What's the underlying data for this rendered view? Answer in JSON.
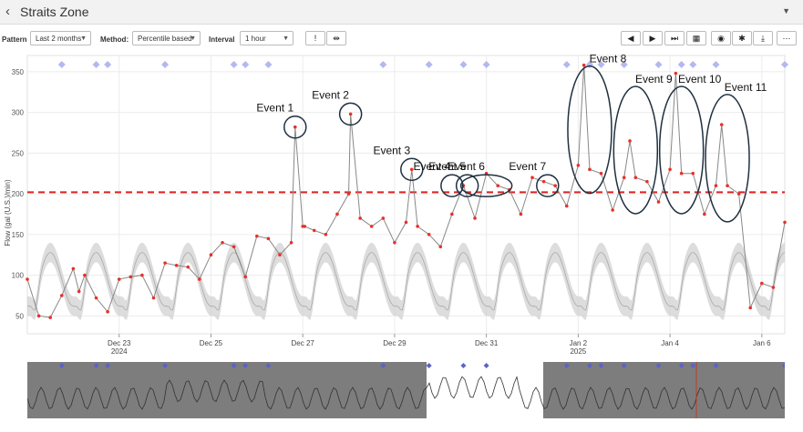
{
  "app": {
    "title": "Straits Zone"
  },
  "controls": {
    "pattern_label": "Pattern",
    "pattern_value": "Last 2 months",
    "method_label": "Method:",
    "method_value": "Percentile based",
    "interval_label": "Interval",
    "interval_value": "1 hour"
  },
  "toolbar_icons": [
    "alert-icon",
    "compare-icon",
    "prev-icon",
    "play-icon",
    "next-icon",
    "calendar-icon",
    "eye-icon",
    "gear-icon",
    "download-icon",
    "more-icon"
  ],
  "chart_data": {
    "type": "line",
    "ylabel": "Flow (gal (U.S.)/min)",
    "ylim": [
      28,
      370
    ],
    "yticks": [
      50,
      100,
      150,
      200,
      250,
      300,
      350
    ],
    "x_range_days": [
      "2024-12-21T00:00",
      "2025-01-06T12:00"
    ],
    "xticks": [
      {
        "date": "2024-12-23",
        "label": "Dec 23",
        "sublabel": "2024"
      },
      {
        "date": "2024-12-25",
        "label": "Dec 25",
        "sublabel": ""
      },
      {
        "date": "2024-12-27",
        "label": "Dec 27",
        "sublabel": ""
      },
      {
        "date": "2024-12-29",
        "label": "Dec 29",
        "sublabel": ""
      },
      {
        "date": "2024-12-31",
        "label": "Dec 31",
        "sublabel": ""
      },
      {
        "date": "2025-01-02",
        "label": "Jan 2",
        "sublabel": "2025"
      },
      {
        "date": "2025-01-04",
        "label": "Jan 4",
        "sublabel": ""
      },
      {
        "date": "2025-01-06",
        "label": "Jan 6",
        "sublabel": ""
      }
    ],
    "threshold": {
      "value": 202,
      "color": "#e02020",
      "style": "dashed"
    },
    "series": [
      {
        "kind": "observed",
        "color": "#888888",
        "marker_color": "#e8302a",
        "points": [
          [
            "2024-12-21T00:00",
            95
          ],
          [
            "2024-12-21T06:00",
            50
          ],
          [
            "2024-12-21T12:00",
            48
          ],
          [
            "2024-12-21T18:00",
            75
          ],
          [
            "2024-12-22T00:00",
            108
          ],
          [
            "2024-12-22T03:00",
            80
          ],
          [
            "2024-12-22T06:00",
            100
          ],
          [
            "2024-12-22T12:00",
            72
          ],
          [
            "2024-12-22T18:00",
            55
          ],
          [
            "2024-12-23T00:00",
            95
          ],
          [
            "2024-12-23T06:00",
            98
          ],
          [
            "2024-12-23T12:00",
            100
          ],
          [
            "2024-12-23T18:00",
            72
          ],
          [
            "2024-12-24T00:00",
            115
          ],
          [
            "2024-12-24T06:00",
            112
          ],
          [
            "2024-12-24T12:00",
            110
          ],
          [
            "2024-12-24T18:00",
            95
          ],
          [
            "2024-12-25T00:00",
            125
          ],
          [
            "2024-12-25T06:00",
            140
          ],
          [
            "2024-12-25T12:00",
            135
          ],
          [
            "2024-12-25T18:00",
            98
          ],
          [
            "2024-12-26T00:00",
            148
          ],
          [
            "2024-12-26T06:00",
            145
          ],
          [
            "2024-12-26T12:00",
            125
          ],
          [
            "2024-12-26T18:00",
            140
          ],
          [
            "2024-12-27T00:00",
            160
          ],
          [
            "2024-12-27T01:00",
            160
          ],
          [
            "2024-12-26T20:00",
            282
          ],
          [
            "2024-12-27T06:00",
            155
          ],
          [
            "2024-12-27T12:00",
            150
          ],
          [
            "2024-12-27T18:00",
            175
          ],
          [
            "2024-12-28T00:00",
            200
          ],
          [
            "2024-12-28T01:00",
            298
          ],
          [
            "2024-12-28T06:00",
            170
          ],
          [
            "2024-12-28T12:00",
            160
          ],
          [
            "2024-12-28T18:00",
            170
          ],
          [
            "2024-12-29T00:00",
            140
          ],
          [
            "2024-12-29T06:00",
            165
          ],
          [
            "2024-12-29T09:00",
            230
          ],
          [
            "2024-12-29T12:00",
            160
          ],
          [
            "2024-12-29T18:00",
            150
          ],
          [
            "2024-12-30T00:00",
            135
          ],
          [
            "2024-12-30T06:00",
            175
          ],
          [
            "2024-12-30T12:00",
            210
          ],
          [
            "2024-12-30T18:00",
            170
          ],
          [
            "2024-12-31T00:00",
            225
          ],
          [
            "2024-12-31T06:00",
            210
          ],
          [
            "2024-12-31T12:00",
            205
          ],
          [
            "2024-12-31T18:00",
            175
          ],
          [
            "2025-01-01T00:00",
            220
          ],
          [
            "2025-01-01T06:00",
            215
          ],
          [
            "2025-01-01T12:00",
            210
          ],
          [
            "2025-01-01T18:00",
            185
          ],
          [
            "2025-01-02T00:00",
            235
          ],
          [
            "2025-01-02T03:00",
            358
          ],
          [
            "2025-01-02T06:00",
            230
          ],
          [
            "2025-01-02T12:00",
            225
          ],
          [
            "2025-01-02T18:00",
            180
          ],
          [
            "2025-01-03T00:00",
            220
          ],
          [
            "2025-01-03T03:00",
            265
          ],
          [
            "2025-01-03T06:00",
            220
          ],
          [
            "2025-01-03T12:00",
            215
          ],
          [
            "2025-01-03T18:00",
            190
          ],
          [
            "2025-01-04T00:00",
            230
          ],
          [
            "2025-01-04T03:00",
            348
          ],
          [
            "2025-01-04T06:00",
            225
          ],
          [
            "2025-01-04T12:00",
            225
          ],
          [
            "2025-01-04T18:00",
            175
          ],
          [
            "2025-01-05T00:00",
            210
          ],
          [
            "2025-01-05T03:00",
            285
          ],
          [
            "2025-01-05T06:00",
            210
          ],
          [
            "2025-01-05T12:00",
            200
          ],
          [
            "2025-01-05T18:00",
            60
          ],
          [
            "2025-01-06T00:00",
            90
          ],
          [
            "2025-01-06T06:00",
            85
          ],
          [
            "2025-01-06T12:00",
            165
          ]
        ]
      }
    ],
    "pattern_band": {
      "color": "#cfcfcf",
      "base_weekday": 95,
      "amplitude": 55
    },
    "event_markers": [
      "2024-12-21T18:00",
      "2024-12-22T12:00",
      "2024-12-22T18:00",
      "2024-12-24T00:00",
      "2024-12-25T12:00",
      "2024-12-25T18:00",
      "2024-12-26T06:00",
      "2024-12-28T18:00",
      "2024-12-29T18:00",
      "2024-12-30T12:00",
      "2024-12-31T00:00",
      "2025-01-01T18:00",
      "2025-01-02T06:00",
      "2025-01-02T12:00",
      "2025-01-03T00:00",
      "2025-01-03T18:00",
      "2025-01-04T06:00",
      "2025-01-04T12:00",
      "2025-01-05T00:00",
      "2025-01-06T12:00"
    ],
    "annotations": [
      {
        "label": "Event 1",
        "x": "2024-12-26T20:00",
        "y": 282
      },
      {
        "label": "Event 2",
        "x": "2024-12-28T01:00",
        "y": 298
      },
      {
        "label": "Event 3",
        "x": "2024-12-29T09:00",
        "y": 230
      },
      {
        "label": "Event 4",
        "x": "2024-12-30T06:00",
        "y": 210
      },
      {
        "label": "Event 5",
        "x": "2024-12-30T14:00",
        "y": 210
      },
      {
        "label": "Event 6",
        "x": "2024-12-31T00:00",
        "y": 210
      },
      {
        "label": "Event 7",
        "x": "2025-01-01T08:00",
        "y": 210
      },
      {
        "label": "Event 8",
        "x": "2025-01-02T06:00",
        "y": 290
      },
      {
        "label": "Event 9",
        "x": "2025-01-03T06:00",
        "y": 265
      },
      {
        "label": "Event 10",
        "x": "2025-01-04T06:00",
        "y": 265
      },
      {
        "label": "Event 11",
        "x": "2025-01-05T06:00",
        "y": 255
      }
    ]
  }
}
